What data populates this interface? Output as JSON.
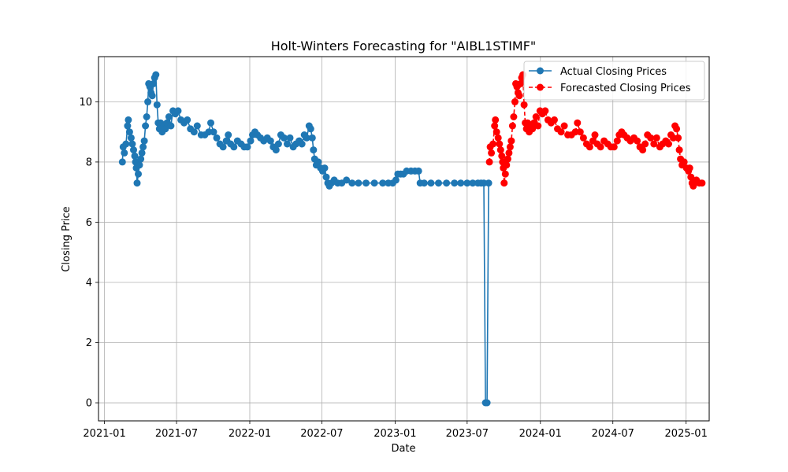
{
  "chart_data": {
    "type": "line",
    "title": "Holt-Winters Forecasting for \"AIBL1STIMF\"",
    "xlabel": "Date",
    "ylabel": "Closing Price",
    "x_ticks": [
      "2021-01",
      "2021-07",
      "2022-01",
      "2022-07",
      "2023-01",
      "2023-07",
      "2024-01",
      "2024-07",
      "2025-01"
    ],
    "y_ticks": [
      0,
      2,
      4,
      6,
      8,
      10
    ],
    "xlim": [
      "2020-12-17",
      "2025-02-28"
    ],
    "ylim": [
      -0.6,
      11.5
    ],
    "grid": true,
    "legend_position": "upper-right",
    "series": [
      {
        "name": "Actual Closing Prices",
        "color": "#1f77b4",
        "style": "solid",
        "marker": "circle",
        "points": [
          [
            "2021-02-15",
            8.0
          ],
          [
            "2021-02-17",
            8.5
          ],
          [
            "2021-02-20",
            8.3
          ],
          [
            "2021-02-24",
            8.6
          ],
          [
            "2021-02-28",
            9.2
          ],
          [
            "2021-03-02",
            9.4
          ],
          [
            "2021-03-05",
            9.0
          ],
          [
            "2021-03-09",
            8.8
          ],
          [
            "2021-03-12",
            8.6
          ],
          [
            "2021-03-15",
            8.4
          ],
          [
            "2021-03-18",
            8.2
          ],
          [
            "2021-03-20",
            8.0
          ],
          [
            "2021-03-22",
            7.8
          ],
          [
            "2021-03-24",
            7.3
          ],
          [
            "2021-03-27",
            7.6
          ],
          [
            "2021-03-30",
            7.9
          ],
          [
            "2021-04-02",
            8.1
          ],
          [
            "2021-04-05",
            8.3
          ],
          [
            "2021-04-08",
            8.5
          ],
          [
            "2021-04-11",
            8.7
          ],
          [
            "2021-04-14",
            9.2
          ],
          [
            "2021-04-17",
            9.5
          ],
          [
            "2021-04-20",
            10.0
          ],
          [
            "2021-04-22",
            10.6
          ],
          [
            "2021-04-25",
            10.5
          ],
          [
            "2021-04-28",
            10.3
          ],
          [
            "2021-05-01",
            10.2
          ],
          [
            "2021-05-04",
            10.6
          ],
          [
            "2021-05-07",
            10.8
          ],
          [
            "2021-05-10",
            10.9
          ],
          [
            "2021-05-13",
            9.9
          ],
          [
            "2021-05-16",
            9.3
          ],
          [
            "2021-05-19",
            9.1
          ],
          [
            "2021-05-22",
            9.3
          ],
          [
            "2021-05-26",
            9.0
          ],
          [
            "2021-05-30",
            9.2
          ],
          [
            "2021-06-03",
            9.1
          ],
          [
            "2021-06-07",
            9.3
          ],
          [
            "2021-06-12",
            9.5
          ],
          [
            "2021-06-17",
            9.2
          ],
          [
            "2021-06-22",
            9.7
          ],
          [
            "2021-06-28",
            9.6
          ],
          [
            "2021-07-05",
            9.7
          ],
          [
            "2021-07-12",
            9.4
          ],
          [
            "2021-07-20",
            9.3
          ],
          [
            "2021-07-28",
            9.4
          ],
          [
            "2021-08-05",
            9.1
          ],
          [
            "2021-08-14",
            9.0
          ],
          [
            "2021-08-22",
            9.2
          ],
          [
            "2021-09-01",
            8.9
          ],
          [
            "2021-09-10",
            8.9
          ],
          [
            "2021-09-20",
            9.0
          ],
          [
            "2021-09-25",
            9.3
          ],
          [
            "2021-10-02",
            9.0
          ],
          [
            "2021-10-10",
            8.8
          ],
          [
            "2021-10-18",
            8.6
          ],
          [
            "2021-10-26",
            8.5
          ],
          [
            "2021-11-03",
            8.7
          ],
          [
            "2021-11-08",
            8.9
          ],
          [
            "2021-11-14",
            8.6
          ],
          [
            "2021-11-22",
            8.5
          ],
          [
            "2021-12-01",
            8.7
          ],
          [
            "2021-12-10",
            8.6
          ],
          [
            "2021-12-18",
            8.5
          ],
          [
            "2021-12-26",
            8.5
          ],
          [
            "2022-01-03",
            8.7
          ],
          [
            "2022-01-08",
            8.9
          ],
          [
            "2022-01-14",
            9.0
          ],
          [
            "2022-01-20",
            8.9
          ],
          [
            "2022-01-28",
            8.8
          ],
          [
            "2022-02-05",
            8.7
          ],
          [
            "2022-02-14",
            8.8
          ],
          [
            "2022-02-22",
            8.7
          ],
          [
            "2022-03-01",
            8.5
          ],
          [
            "2022-03-08",
            8.4
          ],
          [
            "2022-03-14",
            8.6
          ],
          [
            "2022-03-20",
            8.9
          ],
          [
            "2022-03-28",
            8.8
          ],
          [
            "2022-04-05",
            8.6
          ],
          [
            "2022-04-12",
            8.8
          ],
          [
            "2022-04-20",
            8.5
          ],
          [
            "2022-04-27",
            8.6
          ],
          [
            "2022-05-05",
            8.7
          ],
          [
            "2022-05-12",
            8.6
          ],
          [
            "2022-05-18",
            8.9
          ],
          [
            "2022-05-24",
            8.8
          ],
          [
            "2022-05-30",
            9.2
          ],
          [
            "2022-06-03",
            9.1
          ],
          [
            "2022-06-07",
            8.8
          ],
          [
            "2022-06-10",
            8.4
          ],
          [
            "2022-06-13",
            8.1
          ],
          [
            "2022-06-17",
            7.9
          ],
          [
            "2022-06-22",
            8.0
          ],
          [
            "2022-06-28",
            7.8
          ],
          [
            "2022-07-03",
            7.7
          ],
          [
            "2022-07-08",
            7.8
          ],
          [
            "2022-07-12",
            7.5
          ],
          [
            "2022-07-16",
            7.3
          ],
          [
            "2022-07-20",
            7.2
          ],
          [
            "2022-07-25",
            7.3
          ],
          [
            "2022-08-01",
            7.4
          ],
          [
            "2022-08-10",
            7.3
          ],
          [
            "2022-08-20",
            7.3
          ],
          [
            "2022-09-01",
            7.4
          ],
          [
            "2022-09-15",
            7.3
          ],
          [
            "2022-10-01",
            7.3
          ],
          [
            "2022-10-20",
            7.3
          ],
          [
            "2022-11-10",
            7.3
          ],
          [
            "2022-12-01",
            7.3
          ],
          [
            "2022-12-15",
            7.3
          ],
          [
            "2022-12-26",
            7.3
          ],
          [
            "2023-01-03",
            7.4
          ],
          [
            "2023-01-08",
            7.6
          ],
          [
            "2023-01-15",
            7.6
          ],
          [
            "2023-01-22",
            7.6
          ],
          [
            "2023-01-30",
            7.7
          ],
          [
            "2023-02-10",
            7.7
          ],
          [
            "2023-02-20",
            7.7
          ],
          [
            "2023-03-01",
            7.7
          ],
          [
            "2023-03-05",
            7.3
          ],
          [
            "2023-03-15",
            7.3
          ],
          [
            "2023-04-01",
            7.3
          ],
          [
            "2023-04-20",
            7.3
          ],
          [
            "2023-05-10",
            7.3
          ],
          [
            "2023-05-30",
            7.3
          ],
          [
            "2023-06-15",
            7.3
          ],
          [
            "2023-07-01",
            7.3
          ],
          [
            "2023-07-15",
            7.3
          ],
          [
            "2023-07-28",
            7.3
          ],
          [
            "2023-08-05",
            7.3
          ],
          [
            "2023-08-12",
            7.3
          ],
          [
            "2023-08-16",
            0.0
          ],
          [
            "2023-08-20",
            0.0
          ],
          [
            "2023-08-24",
            7.3
          ]
        ]
      },
      {
        "name": "Forecasted Closing Prices",
        "color": "#ff0000",
        "style": "dashed",
        "marker": "circle",
        "points": [
          [
            "2023-08-26",
            8.0
          ],
          [
            "2023-08-28",
            8.5
          ],
          [
            "2023-08-31",
            8.3
          ],
          [
            "2023-09-04",
            8.6
          ],
          [
            "2023-09-08",
            9.2
          ],
          [
            "2023-09-10",
            9.4
          ],
          [
            "2023-09-13",
            9.0
          ],
          [
            "2023-09-17",
            8.8
          ],
          [
            "2023-09-20",
            8.6
          ],
          [
            "2023-09-23",
            8.4
          ],
          [
            "2023-09-26",
            8.2
          ],
          [
            "2023-09-28",
            8.0
          ],
          [
            "2023-09-30",
            7.8
          ],
          [
            "2023-10-02",
            7.3
          ],
          [
            "2023-10-05",
            7.6
          ],
          [
            "2023-10-08",
            7.9
          ],
          [
            "2023-10-11",
            8.1
          ],
          [
            "2023-10-14",
            8.3
          ],
          [
            "2023-10-17",
            8.5
          ],
          [
            "2023-10-20",
            8.7
          ],
          [
            "2023-10-23",
            9.2
          ],
          [
            "2023-10-26",
            9.5
          ],
          [
            "2023-10-29",
            10.0
          ],
          [
            "2023-10-31",
            10.6
          ],
          [
            "2023-11-03",
            10.5
          ],
          [
            "2023-11-06",
            10.3
          ],
          [
            "2023-11-09",
            10.2
          ],
          [
            "2023-11-12",
            10.6
          ],
          [
            "2023-11-15",
            10.8
          ],
          [
            "2023-11-18",
            10.9
          ],
          [
            "2023-11-21",
            9.9
          ],
          [
            "2023-11-24",
            9.3
          ],
          [
            "2023-11-27",
            9.1
          ],
          [
            "2023-11-30",
            9.3
          ],
          [
            "2023-12-04",
            9.0
          ],
          [
            "2023-12-08",
            9.2
          ],
          [
            "2023-12-12",
            9.1
          ],
          [
            "2023-12-16",
            9.3
          ],
          [
            "2023-12-21",
            9.5
          ],
          [
            "2023-12-26",
            9.2
          ],
          [
            "2023-12-31",
            9.7
          ],
          [
            "2024-01-06",
            9.6
          ],
          [
            "2024-01-13",
            9.7
          ],
          [
            "2024-01-20",
            9.4
          ],
          [
            "2024-01-28",
            9.3
          ],
          [
            "2024-02-05",
            9.4
          ],
          [
            "2024-02-13",
            9.1
          ],
          [
            "2024-02-22",
            9.0
          ],
          [
            "2024-03-01",
            9.2
          ],
          [
            "2024-03-10",
            8.9
          ],
          [
            "2024-03-19",
            8.9
          ],
          [
            "2024-03-29",
            9.0
          ],
          [
            "2024-04-03",
            9.3
          ],
          [
            "2024-04-10",
            9.0
          ],
          [
            "2024-04-18",
            8.8
          ],
          [
            "2024-04-26",
            8.6
          ],
          [
            "2024-05-04",
            8.5
          ],
          [
            "2024-05-12",
            8.7
          ],
          [
            "2024-05-17",
            8.9
          ],
          [
            "2024-05-23",
            8.6
          ],
          [
            "2024-05-31",
            8.5
          ],
          [
            "2024-06-09",
            8.7
          ],
          [
            "2024-06-18",
            8.6
          ],
          [
            "2024-06-26",
            8.5
          ],
          [
            "2024-07-04",
            8.5
          ],
          [
            "2024-07-12",
            8.7
          ],
          [
            "2024-07-17",
            8.9
          ],
          [
            "2024-07-23",
            9.0
          ],
          [
            "2024-07-29",
            8.9
          ],
          [
            "2024-08-06",
            8.8
          ],
          [
            "2024-08-14",
            8.7
          ],
          [
            "2024-08-23",
            8.8
          ],
          [
            "2024-08-31",
            8.7
          ],
          [
            "2024-09-07",
            8.5
          ],
          [
            "2024-09-14",
            8.4
          ],
          [
            "2024-09-20",
            8.6
          ],
          [
            "2024-09-26",
            8.9
          ],
          [
            "2024-10-04",
            8.8
          ],
          [
            "2024-10-12",
            8.6
          ],
          [
            "2024-10-19",
            8.8
          ],
          [
            "2024-10-27",
            8.5
          ],
          [
            "2024-11-03",
            8.6
          ],
          [
            "2024-11-11",
            8.7
          ],
          [
            "2024-11-18",
            8.6
          ],
          [
            "2024-11-24",
            8.9
          ],
          [
            "2024-11-30",
            8.8
          ],
          [
            "2024-12-04",
            9.2
          ],
          [
            "2024-12-08",
            9.1
          ],
          [
            "2024-12-12",
            8.8
          ],
          [
            "2024-12-15",
            8.4
          ],
          [
            "2024-12-18",
            8.1
          ],
          [
            "2024-12-22",
            7.9
          ],
          [
            "2024-12-27",
            8.0
          ],
          [
            "2025-01-02",
            7.8
          ],
          [
            "2025-01-07",
            7.7
          ],
          [
            "2025-01-10",
            7.8
          ],
          [
            "2025-01-13",
            7.5
          ],
          [
            "2025-01-16",
            7.3
          ],
          [
            "2025-01-19",
            7.2
          ],
          [
            "2025-01-22",
            7.3
          ],
          [
            "2025-01-27",
            7.4
          ],
          [
            "2025-02-03",
            7.3
          ],
          [
            "2025-02-10",
            7.3
          ]
        ]
      }
    ]
  }
}
